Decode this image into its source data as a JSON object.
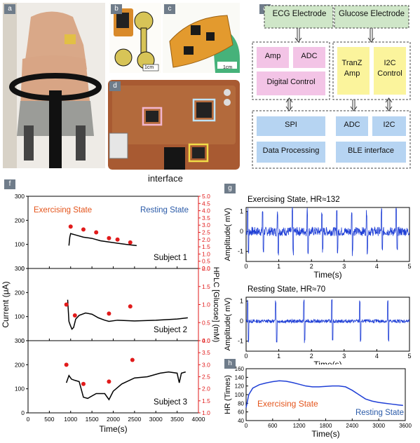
{
  "panels": {
    "a": "a",
    "b": "b",
    "c": "c",
    "d": "d",
    "e": "e",
    "f": "f",
    "g": "g",
    "h": "h"
  },
  "photos": {
    "b_scale": "1cm",
    "c_scale": "1cm",
    "d_label": "interface"
  },
  "block_diagram": {
    "ecg": "ECG Electrode",
    "glucose": "Glucose Electrode",
    "amp": "Amp",
    "adc1": "ADC",
    "digital": "Digital Control",
    "tranz": "TranZ Amp",
    "i2c_ctrl": "I2C Control",
    "spi": "SPI",
    "adc2": "ADC",
    "i2c": "I2C",
    "data_proc": "Data Processing",
    "ble": "BLE interface"
  },
  "chart_data": [
    {
      "type": "line",
      "id": "f",
      "xlabel": "Time(s)",
      "ylabel": "Current (μA)",
      "ylabel2": "HPLC [Glucose] (mM)",
      "xlim": [
        0,
        4000
      ],
      "xticks": [
        0,
        500,
        1000,
        1500,
        2000,
        2500,
        3000,
        3500,
        4000
      ],
      "annotations": [
        "Exercising State",
        "Resting State"
      ],
      "subplots": [
        {
          "name": "Subject 1",
          "ylim": [
            0,
            300
          ],
          "yticks": [
            0,
            100,
            200,
            300
          ],
          "y2lim": [
            0.0,
            5.0
          ],
          "y2ticks": [
            0.0,
            0.5,
            1.0,
            1.5,
            2.0,
            2.5,
            3.0,
            3.5,
            4.0,
            4.5,
            5.0
          ],
          "line": {
            "x": [
              960,
              980,
              1000,
              1100,
              1300,
              1500,
              1700,
              1900,
              2100,
              2300,
              2550
            ],
            "y": [
              95,
              130,
              145,
              140,
              130,
              125,
              115,
              110,
              105,
              100,
              95
            ]
          },
          "hplc": {
            "x": [
              1000,
              1300,
              1600,
              1900,
              2100,
              2400
            ],
            "y": [
              2.9,
              2.7,
              2.5,
              2.1,
              2.0,
              1.8
            ]
          }
        },
        {
          "name": "Subject 2",
          "ylim": [
            0,
            300
          ],
          "yticks": [
            0,
            100,
            200,
            300
          ],
          "y2lim": [
            0.0,
            2.0
          ],
          "y2ticks": [
            0.0,
            0.5,
            1.0,
            1.5,
            2.0
          ],
          "line": {
            "x": [
              930,
              960,
              990,
              1030,
              1070,
              1120,
              1200,
              1350,
              1500,
              1650,
              1800,
              1900,
              2100,
              2500,
              3000,
              3500,
              3750
            ],
            "y": [
              170,
              80,
              65,
              48,
              55,
              90,
              105,
              115,
              110,
              95,
              85,
              80,
              85,
              82,
              85,
              90,
              95
            ]
          },
          "hplc": {
            "x": [
              900,
              1100,
              1900,
              2400
            ],
            "y": [
              1.0,
              0.7,
              0.75,
              0.95
            ]
          }
        },
        {
          "name": "Subject 3",
          "ylim": [
            0,
            300
          ],
          "yticks": [
            0,
            100,
            200,
            300
          ],
          "y2lim": [
            1.0,
            4.0
          ],
          "y2ticks": [
            1.0,
            1.5,
            2.0,
            2.5,
            3.0,
            3.5,
            4.0
          ],
          "line": {
            "x": [
              900,
              960,
              1020,
              1100,
              1200,
              1300,
              1400,
              1600,
              1800,
              1900,
              2000,
              2200,
              2500,
              2800,
              3100,
              3300,
              3500,
              3550,
              3600,
              3700
            ],
            "y": [
              125,
              155,
              140,
              135,
              130,
              65,
              60,
              80,
              80,
              55,
              90,
              120,
              145,
              150,
              165,
              170,
              165,
              125,
              165,
              170
            ]
          },
          "hplc": {
            "x": [
              900,
              1300,
              1900,
              2450
            ],
            "y": [
              3.0,
              2.2,
              2.3,
              3.2
            ]
          }
        }
      ]
    },
    {
      "type": "line",
      "id": "g_exercising",
      "title": "Exercising State, HR≈132",
      "xlabel": "Time(s)",
      "ylabel": "Amplitude( mV)",
      "xlim": [
        0,
        5
      ],
      "ylim": [
        -1.5,
        1.2
      ],
      "xticks": [
        0,
        1,
        2,
        3,
        4,
        5
      ],
      "yticks": [
        -1,
        0,
        1
      ],
      "color": "#1f3fd6"
    },
    {
      "type": "line",
      "id": "g_resting",
      "title": "Resting State, HR≈70",
      "xlabel": "Time(s)",
      "ylabel": "Amplitude( mV)",
      "xlim": [
        0,
        5
      ],
      "ylim": [
        -1.5,
        1.2
      ],
      "xticks": [
        0,
        1,
        2,
        3,
        4,
        5
      ],
      "yticks": [
        -1,
        0,
        1
      ],
      "color": "#1f3fd6"
    },
    {
      "type": "line",
      "id": "h",
      "xlabel": "Time(s)",
      "ylabel": "HR (Times)",
      "xlim": [
        0,
        3600
      ],
      "ylim": [
        40,
        160
      ],
      "xticks": [
        0,
        600,
        1200,
        1800,
        2400,
        3000,
        3600
      ],
      "yticks": [
        40,
        60,
        80,
        100,
        120,
        140,
        160
      ],
      "annotations": [
        "Exercising State",
        "Resting State"
      ],
      "x": [
        0,
        60,
        150,
        300,
        450,
        600,
        750,
        900,
        1050,
        1200,
        1350,
        1500,
        1650,
        1800,
        1950,
        2100,
        2250,
        2400,
        2550,
        2700,
        2850,
        3000,
        3150,
        3300,
        3450,
        3550
      ],
      "y": [
        70,
        100,
        115,
        123,
        127,
        130,
        132,
        131,
        128,
        124,
        120,
        118,
        118,
        119,
        120,
        120,
        118,
        110,
        100,
        90,
        85,
        82,
        80,
        78,
        76,
        75
      ]
    }
  ],
  "colors": {
    "pink": "#f3c4e6",
    "yellow": "#fbf49c",
    "blue": "#b6d4f2",
    "green": "#cfe6c8",
    "red": "#e11b1b",
    "orange": "#e4541b",
    "darkblue": "#2a5aa8",
    "ecg": "#1f3fd6"
  }
}
